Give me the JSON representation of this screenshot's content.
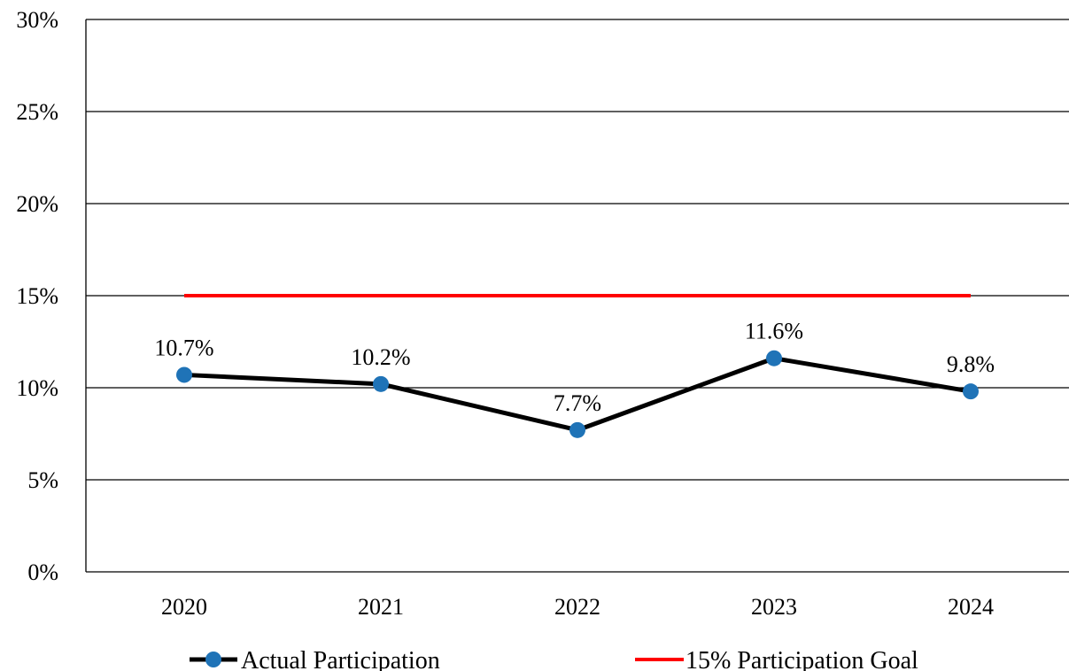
{
  "chart_data": {
    "type": "line",
    "title": "",
    "xlabel": "",
    "ylabel": "",
    "categories": [
      "2020",
      "2021",
      "2022",
      "2023",
      "2024"
    ],
    "ylim": [
      0,
      30
    ],
    "y_ticks": [
      "0%",
      "5%",
      "10%",
      "15%",
      "20%",
      "25%",
      "30%"
    ],
    "y_tick_values": [
      0,
      5,
      10,
      15,
      20,
      25,
      30
    ],
    "grid": "horizontal",
    "legend_position": "bottom",
    "series": [
      {
        "name": "Actual Participation",
        "values": [
          10.7,
          10.2,
          7.7,
          11.6,
          9.8
        ],
        "data_labels": [
          "10.7%",
          "10.2%",
          "7.7%",
          "11.6%",
          "9.8%"
        ],
        "line_color": "#000000",
        "marker_color": "#1f73b7"
      },
      {
        "name": "15% Participation Goal",
        "values": [
          15,
          15,
          15,
          15,
          15
        ],
        "line_color": "#ff0000"
      }
    ]
  }
}
